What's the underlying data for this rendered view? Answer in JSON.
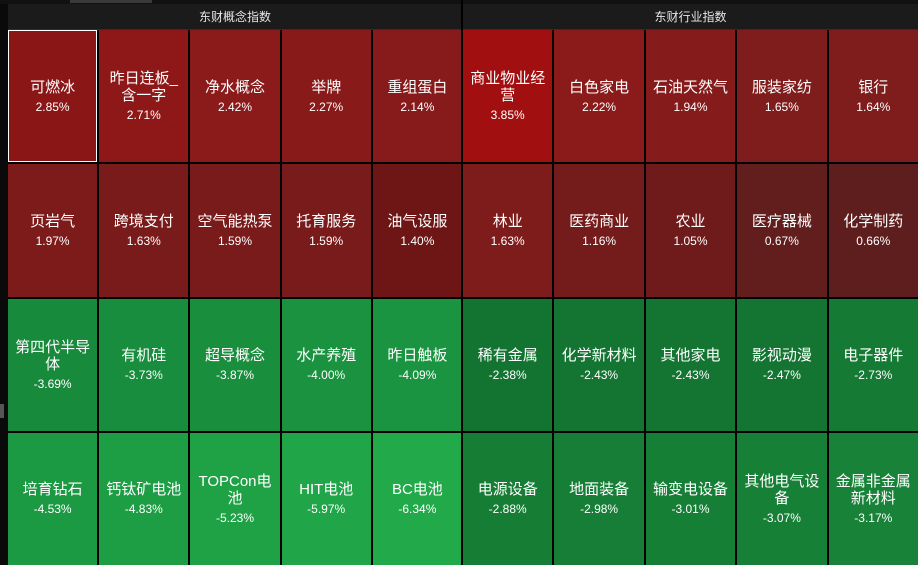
{
  "concept_panel": {
    "title": "东财概念指数",
    "tiles": [
      {
        "name": "可燃冰",
        "pct": "2.85%",
        "color": "#8b1616",
        "selected": true
      },
      {
        "name": "昨日连板_含一字",
        "pct": "2.71%",
        "color": "#8e1818"
      },
      {
        "name": "净水概念",
        "pct": "2.42%",
        "color": "#8b1a1a"
      },
      {
        "name": "举牌",
        "pct": "2.27%",
        "color": "#891a1a"
      },
      {
        "name": "重组蛋白",
        "pct": "2.14%",
        "color": "#871b1b"
      },
      {
        "name": "页岩气",
        "pct": "1.97%",
        "color": "#7d1a1a"
      },
      {
        "name": "跨境支付",
        "pct": "1.63%",
        "color": "#7a1b1b"
      },
      {
        "name": "空气能热泵",
        "pct": "1.59%",
        "color": "#7a1b1b"
      },
      {
        "name": "托育服务",
        "pct": "1.59%",
        "color": "#7a1b1b"
      },
      {
        "name": "油气设服",
        "pct": "1.40%",
        "color": "#6e1616"
      },
      {
        "name": "第四代半导体",
        "pct": "-3.69%",
        "color": "#188a3c"
      },
      {
        "name": "有机硅",
        "pct": "-3.73%",
        "color": "#188d3d"
      },
      {
        "name": "超导概念",
        "pct": "-3.87%",
        "color": "#198f3e"
      },
      {
        "name": "水产养殖",
        "pct": "-4.00%",
        "color": "#1a923f"
      },
      {
        "name": "昨日触板",
        "pct": "-4.09%",
        "color": "#1a9440"
      },
      {
        "name": "培育钻石",
        "pct": "-4.53%",
        "color": "#1c9a43"
      },
      {
        "name": "钙钛矿电池",
        "pct": "-4.83%",
        "color": "#1d9d44"
      },
      {
        "name": "TOPCon电池",
        "pct": "-5.23%",
        "color": "#1fa146"
      },
      {
        "name": "HIT电池",
        "pct": "-5.97%",
        "color": "#20a648"
      },
      {
        "name": "BC电池",
        "pct": "-6.34%",
        "color": "#21a94a"
      }
    ]
  },
  "industry_panel": {
    "title": "东财行业指数",
    "tiles": [
      {
        "name": "商业物业经营",
        "pct": "3.85%",
        "color": "#a20f10"
      },
      {
        "name": "白色家电",
        "pct": "2.22%",
        "color": "#8b1a1a"
      },
      {
        "name": "石油天然气",
        "pct": "1.94%",
        "color": "#851b1b"
      },
      {
        "name": "服装家纺",
        "pct": "1.65%",
        "color": "#7f1c1c"
      },
      {
        "name": "银行",
        "pct": "1.64%",
        "color": "#7f1c1c"
      },
      {
        "name": "林业",
        "pct": "1.63%",
        "color": "#7e1c1c"
      },
      {
        "name": "医药商业",
        "pct": "1.16%",
        "color": "#741b1b"
      },
      {
        "name": "农业",
        "pct": "1.05%",
        "color": "#701b1b"
      },
      {
        "name": "医疗器械",
        "pct": "0.67%",
        "color": "#621d1d"
      },
      {
        "name": "化学制药",
        "pct": "0.66%",
        "color": "#5f1e1e"
      },
      {
        "name": "稀有金属",
        "pct": "-2.38%",
        "color": "#137331"
      },
      {
        "name": "化学新材料",
        "pct": "-2.43%",
        "color": "#147432"
      },
      {
        "name": "其他家电",
        "pct": "-2.43%",
        "color": "#147432"
      },
      {
        "name": "影视动漫",
        "pct": "-2.47%",
        "color": "#147532"
      },
      {
        "name": "电子器件",
        "pct": "-2.73%",
        "color": "#157a34"
      },
      {
        "name": "电源设备",
        "pct": "-2.88%",
        "color": "#167d35"
      },
      {
        "name": "地面装备",
        "pct": "-2.98%",
        "color": "#167e36"
      },
      {
        "name": "输变电设备",
        "pct": "-3.01%",
        "color": "#167f36"
      },
      {
        "name": "其他电气设备",
        "pct": "-3.07%",
        "color": "#178037"
      },
      {
        "name": "金属非金属新材料",
        "pct": "-3.17%",
        "color": "#178238"
      }
    ]
  }
}
